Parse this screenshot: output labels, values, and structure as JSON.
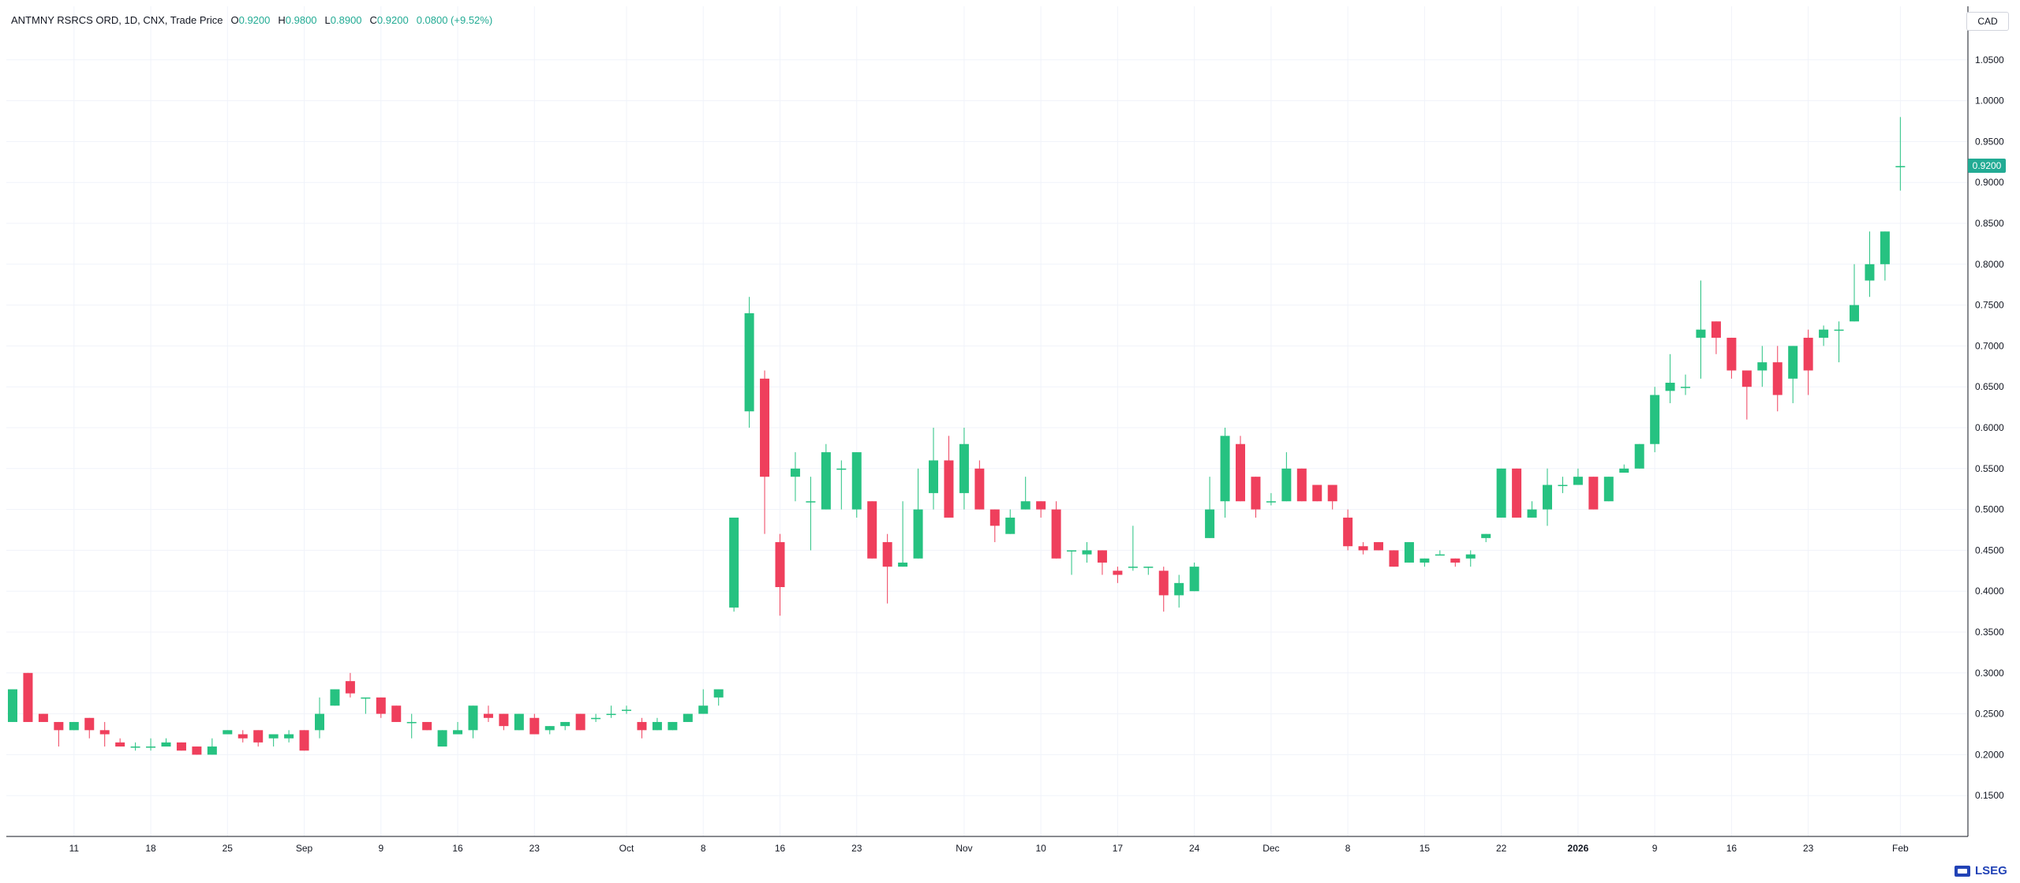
{
  "legend": {
    "symbol": "ANTMNY RSRCS ORD, 1D, CNX, Trade Price",
    "open_k": "O",
    "open_v": "0.9200",
    "high_k": "H",
    "high_v": "0.9800",
    "low_k": "L",
    "low_v": "0.8900",
    "close_k": "C",
    "close_v": "0.9200",
    "change_v": "0.0800 (+9.52%)"
  },
  "currency": "CAD",
  "last_price_badge": "0.9200",
  "logo_text": "LSEG",
  "colors": {
    "up": "#26c281",
    "down": "#ef3f5c",
    "badge": "#22ab94",
    "grid": "#f0f3fa",
    "axis": "#131722"
  },
  "chart_data": {
    "type": "candlestick",
    "ylim": [
      0.1,
      1.1
    ],
    "y_ticks": [
      "0.1500",
      "0.2000",
      "0.2500",
      "0.3000",
      "0.3500",
      "0.4000",
      "0.4500",
      "0.5000",
      "0.5500",
      "0.6000",
      "0.6500",
      "0.7000",
      "0.7500",
      "0.8000",
      "0.8500",
      "0.9000",
      "0.9500",
      "1.0000",
      "1.0500"
    ],
    "x_ticks": [
      {
        "label": "11",
        "i": 4
      },
      {
        "label": "18",
        "i": 9
      },
      {
        "label": "25",
        "i": 14
      },
      {
        "label": "Sep",
        "i": 19
      },
      {
        "label": "9",
        "i": 24
      },
      {
        "label": "16",
        "i": 29
      },
      {
        "label": "23",
        "i": 34
      },
      {
        "label": "Oct",
        "i": 40
      },
      {
        "label": "8",
        "i": 45
      },
      {
        "label": "16",
        "i": 50
      },
      {
        "label": "23",
        "i": 55
      },
      {
        "label": "Nov",
        "i": 62
      },
      {
        "label": "10",
        "i": 67
      },
      {
        "label": "17",
        "i": 72
      },
      {
        "label": "24",
        "i": 77
      },
      {
        "label": "Dec",
        "i": 82
      },
      {
        "label": "8",
        "i": 87
      },
      {
        "label": "15",
        "i": 92
      },
      {
        "label": "22",
        "i": 97
      },
      {
        "label": "2026",
        "i": 102
      },
      {
        "label": "9",
        "i": 107
      },
      {
        "label": "16",
        "i": 112
      },
      {
        "label": "23",
        "i": 117
      },
      {
        "label": "Feb",
        "i": 123
      }
    ],
    "ohlc": [
      [
        0.24,
        0.28,
        0.24,
        0.28
      ],
      [
        0.3,
        0.3,
        0.24,
        0.24
      ],
      [
        0.25,
        0.25,
        0.24,
        0.24
      ],
      [
        0.24,
        0.24,
        0.21,
        0.23
      ],
      [
        0.23,
        0.24,
        0.23,
        0.24
      ],
      [
        0.245,
        0.245,
        0.22,
        0.23
      ],
      [
        0.23,
        0.24,
        0.21,
        0.225
      ],
      [
        0.215,
        0.22,
        0.21,
        0.21
      ],
      [
        0.21,
        0.215,
        0.205,
        0.21
      ],
      [
        0.21,
        0.22,
        0.205,
        0.21
      ],
      [
        0.21,
        0.22,
        0.21,
        0.215
      ],
      [
        0.215,
        0.215,
        0.205,
        0.205
      ],
      [
        0.21,
        0.21,
        0.2,
        0.2
      ],
      [
        0.2,
        0.22,
        0.2,
        0.21
      ],
      [
        0.225,
        0.23,
        0.225,
        0.23
      ],
      [
        0.225,
        0.23,
        0.215,
        0.22
      ],
      [
        0.23,
        0.23,
        0.21,
        0.215
      ],
      [
        0.22,
        0.225,
        0.21,
        0.225
      ],
      [
        0.22,
        0.23,
        0.215,
        0.225
      ],
      [
        0.23,
        0.23,
        0.205,
        0.205
      ],
      [
        0.23,
        0.27,
        0.22,
        0.25
      ],
      [
        0.26,
        0.28,
        0.26,
        0.28
      ],
      [
        0.29,
        0.3,
        0.27,
        0.275
      ],
      [
        0.27,
        0.27,
        0.25,
        0.27
      ],
      [
        0.27,
        0.27,
        0.245,
        0.25
      ],
      [
        0.26,
        0.26,
        0.24,
        0.24
      ],
      [
        0.24,
        0.25,
        0.22,
        0.24
      ],
      [
        0.24,
        0.24,
        0.23,
        0.23
      ],
      [
        0.21,
        0.23,
        0.21,
        0.23
      ],
      [
        0.225,
        0.24,
        0.225,
        0.23
      ],
      [
        0.23,
        0.26,
        0.22,
        0.26
      ],
      [
        0.25,
        0.26,
        0.24,
        0.245
      ],
      [
        0.25,
        0.25,
        0.23,
        0.235
      ],
      [
        0.23,
        0.25,
        0.23,
        0.25
      ],
      [
        0.245,
        0.25,
        0.225,
        0.225
      ],
      [
        0.23,
        0.235,
        0.225,
        0.235
      ],
      [
        0.235,
        0.24,
        0.23,
        0.24
      ],
      [
        0.25,
        0.25,
        0.23,
        0.23
      ],
      [
        0.245,
        0.25,
        0.24,
        0.245
      ],
      [
        0.25,
        0.26,
        0.245,
        0.25
      ],
      [
        0.255,
        0.26,
        0.25,
        0.255
      ],
      [
        0.24,
        0.245,
        0.22,
        0.23
      ],
      [
        0.23,
        0.245,
        0.23,
        0.24
      ],
      [
        0.23,
        0.24,
        0.23,
        0.24
      ],
      [
        0.24,
        0.25,
        0.24,
        0.25
      ],
      [
        0.25,
        0.28,
        0.25,
        0.26
      ],
      [
        0.27,
        0.28,
        0.26,
        0.28
      ],
      [
        0.38,
        0.49,
        0.375,
        0.49
      ],
      [
        0.62,
        0.76,
        0.6,
        0.74
      ],
      [
        0.66,
        0.67,
        0.47,
        0.54
      ],
      [
        0.46,
        0.47,
        0.37,
        0.405
      ],
      [
        0.54,
        0.57,
        0.51,
        0.55
      ],
      [
        0.51,
        0.54,
        0.45,
        0.51
      ],
      [
        0.5,
        0.58,
        0.5,
        0.57
      ],
      [
        0.55,
        0.56,
        0.5,
        0.55
      ],
      [
        0.5,
        0.57,
        0.49,
        0.57
      ],
      [
        0.51,
        0.51,
        0.44,
        0.44
      ],
      [
        0.46,
        0.47,
        0.385,
        0.43
      ],
      [
        0.43,
        0.51,
        0.43,
        0.435
      ],
      [
        0.44,
        0.55,
        0.44,
        0.5
      ],
      [
        0.52,
        0.6,
        0.5,
        0.56
      ],
      [
        0.56,
        0.59,
        0.49,
        0.49
      ],
      [
        0.52,
        0.6,
        0.5,
        0.58
      ],
      [
        0.55,
        0.56,
        0.5,
        0.5
      ],
      [
        0.5,
        0.5,
        0.46,
        0.48
      ],
      [
        0.47,
        0.5,
        0.47,
        0.49
      ],
      [
        0.5,
        0.54,
        0.5,
        0.51
      ],
      [
        0.51,
        0.51,
        0.49,
        0.5
      ],
      [
        0.5,
        0.51,
        0.44,
        0.44
      ],
      [
        0.45,
        0.45,
        0.42,
        0.45
      ],
      [
        0.445,
        0.46,
        0.435,
        0.45
      ],
      [
        0.45,
        0.45,
        0.42,
        0.435
      ],
      [
        0.425,
        0.43,
        0.41,
        0.42
      ],
      [
        0.43,
        0.48,
        0.425,
        0.43
      ],
      [
        0.43,
        0.43,
        0.42,
        0.43
      ],
      [
        0.425,
        0.43,
        0.375,
        0.395
      ],
      [
        0.395,
        0.42,
        0.38,
        0.41
      ],
      [
        0.4,
        0.435,
        0.4,
        0.43
      ],
      [
        0.465,
        0.54,
        0.465,
        0.5
      ],
      [
        0.51,
        0.6,
        0.49,
        0.59
      ],
      [
        0.58,
        0.59,
        0.51,
        0.51
      ],
      [
        0.54,
        0.54,
        0.49,
        0.5
      ],
      [
        0.51,
        0.52,
        0.505,
        0.51
      ],
      [
        0.51,
        0.57,
        0.51,
        0.55
      ],
      [
        0.55,
        0.55,
        0.51,
        0.51
      ],
      [
        0.53,
        0.53,
        0.51,
        0.51
      ],
      [
        0.53,
        0.53,
        0.5,
        0.51
      ],
      [
        0.49,
        0.5,
        0.45,
        0.455
      ],
      [
        0.455,
        0.46,
        0.445,
        0.45
      ],
      [
        0.46,
        0.46,
        0.45,
        0.45
      ],
      [
        0.45,
        0.45,
        0.43,
        0.43
      ],
      [
        0.435,
        0.46,
        0.435,
        0.46
      ],
      [
        0.435,
        0.44,
        0.43,
        0.44
      ],
      [
        0.445,
        0.45,
        0.445,
        0.445
      ],
      [
        0.44,
        0.44,
        0.43,
        0.435
      ],
      [
        0.44,
        0.45,
        0.43,
        0.445
      ],
      [
        0.465,
        0.47,
        0.46,
        0.47
      ],
      [
        0.49,
        0.55,
        0.49,
        0.55
      ],
      [
        0.55,
        0.55,
        0.49,
        0.49
      ],
      [
        0.49,
        0.51,
        0.49,
        0.5
      ],
      [
        0.5,
        0.55,
        0.48,
        0.53
      ],
      [
        0.53,
        0.54,
        0.52,
        0.53
      ],
      [
        0.53,
        0.55,
        0.53,
        0.54
      ],
      [
        0.54,
        0.54,
        0.5,
        0.5
      ],
      [
        0.51,
        0.54,
        0.51,
        0.54
      ],
      [
        0.545,
        0.555,
        0.545,
        0.55
      ],
      [
        0.55,
        0.58,
        0.55,
        0.58
      ],
      [
        0.58,
        0.65,
        0.57,
        0.64
      ],
      [
        0.645,
        0.69,
        0.63,
        0.655
      ],
      [
        0.65,
        0.665,
        0.64,
        0.65
      ],
      [
        0.71,
        0.78,
        0.66,
        0.72
      ],
      [
        0.73,
        0.73,
        0.69,
        0.71
      ],
      [
        0.71,
        0.71,
        0.66,
        0.67
      ],
      [
        0.67,
        0.67,
        0.61,
        0.65
      ],
      [
        0.67,
        0.7,
        0.65,
        0.68
      ],
      [
        0.68,
        0.7,
        0.62,
        0.64
      ],
      [
        0.66,
        0.7,
        0.63,
        0.7
      ],
      [
        0.71,
        0.72,
        0.64,
        0.67
      ],
      [
        0.71,
        0.725,
        0.7,
        0.72
      ],
      [
        0.72,
        0.73,
        0.68,
        0.72
      ],
      [
        0.73,
        0.8,
        0.73,
        0.75
      ],
      [
        0.78,
        0.84,
        0.76,
        0.8
      ],
      [
        0.8,
        0.84,
        0.78,
        0.84
      ],
      [
        0.92,
        0.98,
        0.89,
        0.92
      ]
    ]
  }
}
